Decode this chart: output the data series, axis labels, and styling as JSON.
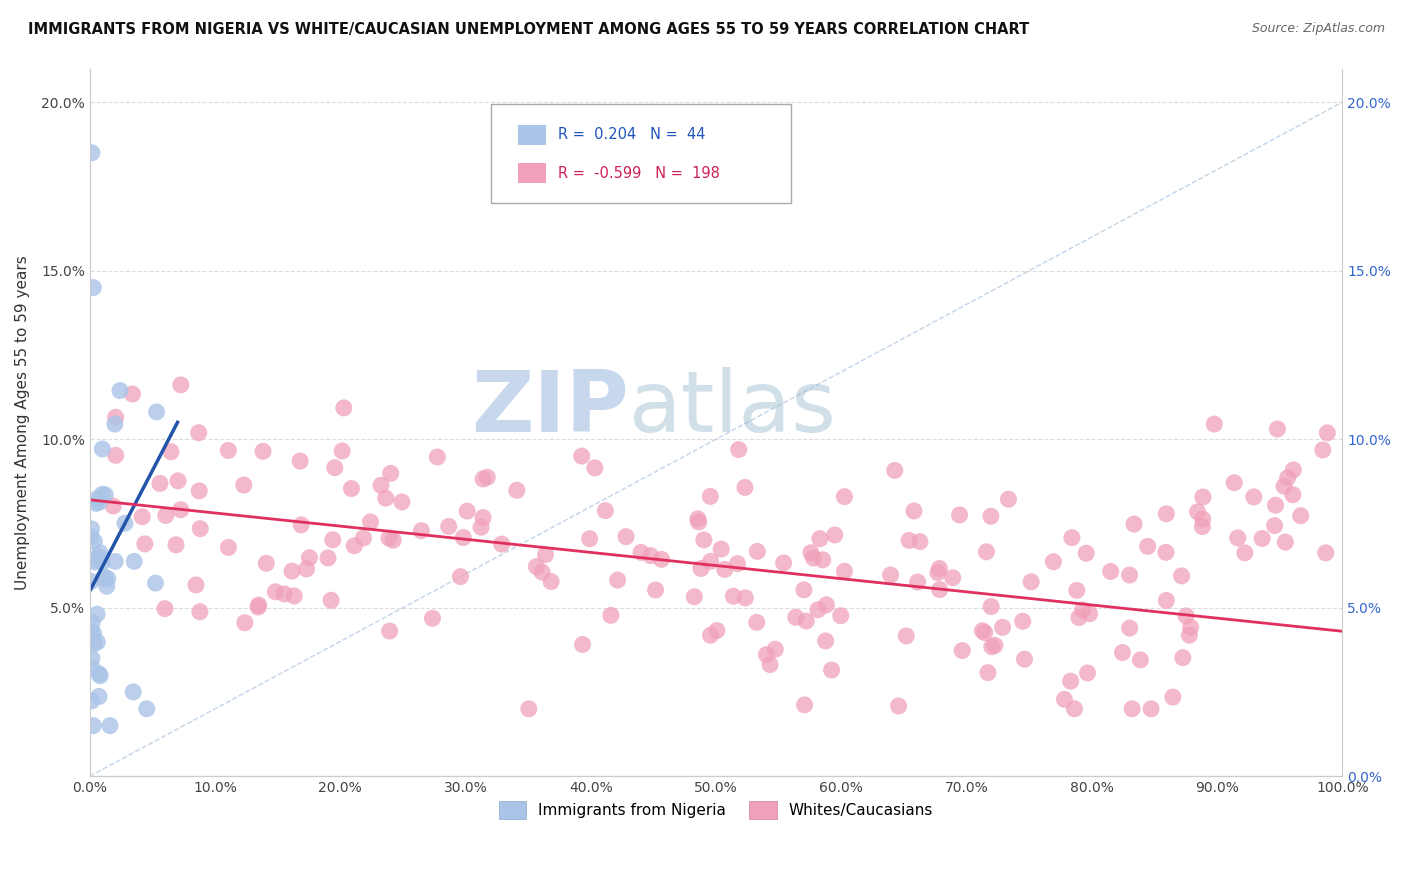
{
  "title": "IMMIGRANTS FROM NIGERIA VS WHITE/CAUCASIAN UNEMPLOYMENT AMONG AGES 55 TO 59 YEARS CORRELATION CHART",
  "source": "Source: ZipAtlas.com",
  "ylabel": "Unemployment Among Ages 55 to 59 years",
  "xlim": [
    0,
    1.0
  ],
  "ylim": [
    0,
    0.21
  ],
  "R_nigeria": 0.204,
  "N_nigeria": 44,
  "R_white": -0.599,
  "N_white": 198,
  "nigeria_color": "#aac4e8",
  "nigeria_line_color": "#2255aa",
  "white_color": "#f0a0b8",
  "white_line_color": "#e03060",
  "background_color": "#ffffff",
  "grid_color": "#dddddd",
  "ref_line_color": "#9ab8d8",
  "legend_entries": [
    {
      "label": "Immigrants from Nigeria",
      "color": "#aac4e8"
    },
    {
      "label": "Whites/Caucasians",
      "color": "#f0a0b8"
    }
  ],
  "nigeria_line_x": [
    0.0,
    0.07
  ],
  "nigeria_line_y": [
    0.055,
    0.105
  ],
  "white_line_x": [
    0.0,
    1.0
  ],
  "white_line_y": [
    0.082,
    0.043
  ]
}
